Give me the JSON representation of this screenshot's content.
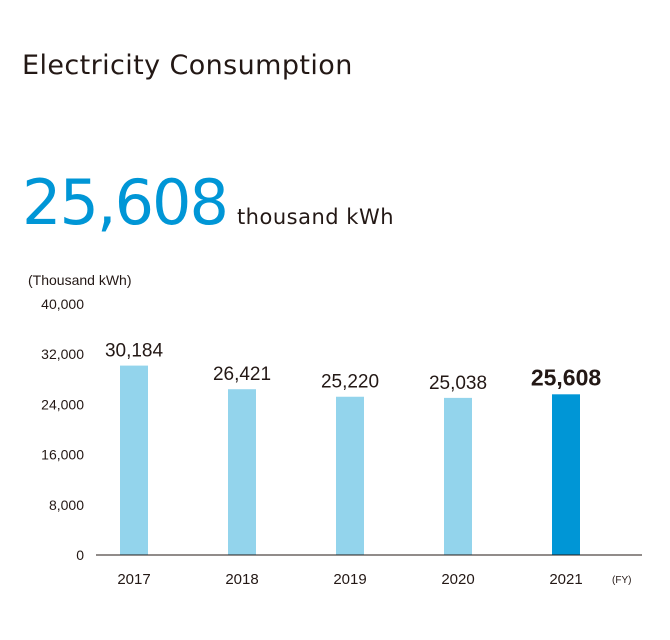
{
  "page": {
    "title": "Electricity Consumption",
    "headline_value": "25,608",
    "headline_unit": "thousand kWh"
  },
  "colors": {
    "accent": "#0096d6",
    "bar": "#93d4ec",
    "bar_highlight": "#0096d6",
    "text": "#231815"
  },
  "chart_data": {
    "type": "bar",
    "title": "",
    "ylabel": "(Thousand kWh)",
    "xlabel": "(FY)",
    "categories": [
      "2017",
      "2018",
      "2019",
      "2020",
      "2021"
    ],
    "series": [
      {
        "values": [
          30184,
          26421,
          25220,
          25038,
          25608
        ]
      }
    ],
    "data_labels": [
      "30,184",
      "26,421",
      "25,220",
      "25,038",
      "25,608"
    ],
    "highlight_index": 4,
    "ylim": [
      0,
      40000
    ],
    "yticks": [
      0,
      8000,
      16000,
      24000,
      32000,
      40000
    ],
    "ytick_labels": [
      "0",
      "8,000",
      "16,000",
      "24,000",
      "32,000",
      "40,000"
    ],
    "grid": false,
    "legend": "none"
  }
}
